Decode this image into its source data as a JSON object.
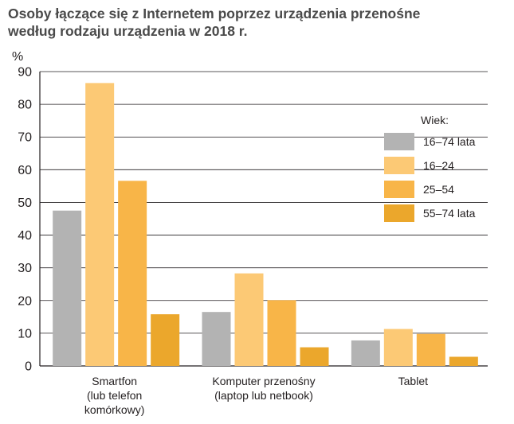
{
  "chart_data": {
    "type": "bar",
    "title": "Osoby łączące się z Internetem poprzez urządzenia przenośne",
    "subtitle": "według rodzaju urządzenia w 2018 r.",
    "ylabel": "%",
    "xlabel": "",
    "ylim": [
      0,
      90
    ],
    "yticks": [
      0,
      10,
      20,
      30,
      40,
      50,
      60,
      70,
      80,
      90
    ],
    "grid": true,
    "legend_title": "Wiek:",
    "legend_position": "right",
    "categories": [
      [
        "Smartfon",
        "(lub telefon",
        "komórkowy)"
      ],
      [
        "Komputer przenośny",
        "(laptop lub netbook)"
      ],
      [
        "Tablet"
      ]
    ],
    "series": [
      {
        "name": "16–74 lata",
        "color": "#b3b3b3",
        "values": [
          47.5,
          16.5,
          7.8
        ]
      },
      {
        "name": "16–24",
        "color": "#fcc975",
        "values": [
          86.5,
          28.3,
          11.3
        ]
      },
      {
        "name": "25–54",
        "color": "#f8b548",
        "values": [
          56.6,
          20.1,
          9.8
        ]
      },
      {
        "name": "55–74 lata",
        "color": "#eba72c",
        "values": [
          15.8,
          5.7,
          2.8
        ]
      }
    ]
  }
}
